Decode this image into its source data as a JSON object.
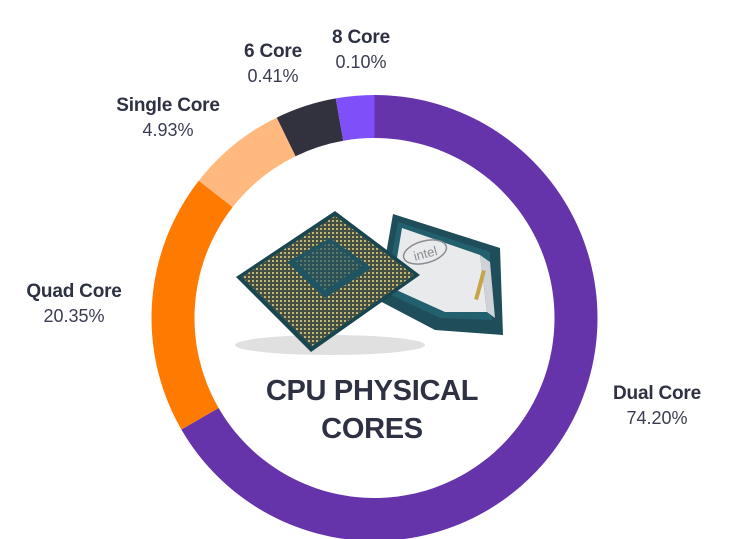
{
  "chart_data": {
    "type": "pie",
    "subtype": "donut",
    "title": "CPU PHYSICAL CORES",
    "title_lines": [
      "CPU PHYSICAL",
      "CORES"
    ],
    "categories": [
      "Dual Core",
      "Quad Core",
      "Single Core",
      "6 Core",
      "8 Core"
    ],
    "values": [
      74.2,
      20.35,
      4.93,
      0.41,
      0.1
    ],
    "value_labels": [
      "74.20%",
      "20.35%",
      "4.93%",
      "0.41%",
      "0.10%"
    ],
    "colors": [
      "#6533aa",
      "#ff7a00",
      "#ffb97f",
      "#32323f",
      "#7f4ffa"
    ],
    "visual_arc_degrees": [
      240,
      68,
      26,
      16,
      10
    ],
    "start_angle": 0,
    "direction": "clockwise",
    "center_image": "intel-cpu-processor-photo",
    "legend": "none (direct labels around ring)"
  },
  "labels": {
    "dual": {
      "name": "Dual Core",
      "pct": "74.20%"
    },
    "quad": {
      "name": "Quad Core",
      "pct": "20.35%"
    },
    "single": {
      "name": "Single Core",
      "pct": "4.93%"
    },
    "six": {
      "name": "6 Core",
      "pct": "0.41%"
    },
    "eight": {
      "name": "8 Core",
      "pct": "0.10%"
    }
  },
  "center": {
    "line1": "CPU PHYSICAL",
    "line2": "CORES",
    "image_logo_text": "intel"
  }
}
